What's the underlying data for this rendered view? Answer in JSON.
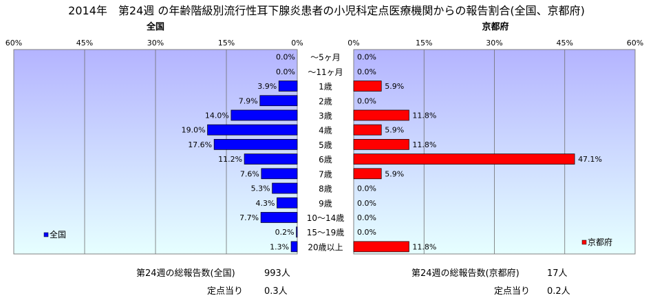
{
  "title": "2014年　第24週 の年齢階級別流行性耳下腺炎患者の小児科定点医療機関からの報告割合(全国、京都府)",
  "chart_data": {
    "type": "bar",
    "orientation": "horizontal-butterfly",
    "categories": [
      "～5ヶ月",
      "～11ヶ月",
      "1歳",
      "2歳",
      "3歳",
      "4歳",
      "5歳",
      "6歳",
      "7歳",
      "8歳",
      "9歳",
      "10～14歳",
      "15～19歳",
      "20歳以上"
    ],
    "ticks": [
      "60%",
      "45%",
      "30%",
      "15%",
      "0%"
    ],
    "ticks_right": [
      "0%",
      "15%",
      "30%",
      "45%",
      "60%"
    ],
    "xlim": [
      0,
      60
    ],
    "series": [
      {
        "name": "全国",
        "subtitle": "全国",
        "color": "#0000ff",
        "values": [
          0.0,
          0.0,
          3.9,
          7.9,
          14.0,
          19.0,
          17.6,
          11.2,
          7.6,
          5.3,
          4.3,
          7.7,
          0.2,
          1.3
        ],
        "labels": [
          "0.0%",
          "0.0%",
          "3.9%",
          "7.9%",
          "14.0%",
          "19.0%",
          "17.6%",
          "11.2%",
          "7.6%",
          "5.3%",
          "4.3%",
          "7.7%",
          "0.2%",
          "1.3%"
        ],
        "legend": "全国"
      },
      {
        "name": "京都府",
        "subtitle": "京都府",
        "color": "#ff0000",
        "values": [
          0.0,
          0.0,
          5.9,
          0.0,
          11.8,
          5.9,
          11.8,
          47.1,
          5.9,
          0.0,
          0.0,
          0.0,
          0.0,
          11.8
        ],
        "labels": [
          "0.0%",
          "0.0%",
          "5.9%",
          "0.0%",
          "11.8%",
          "5.9%",
          "11.8%",
          "47.1%",
          "5.9%",
          "0.0%",
          "0.0%",
          "0.0%",
          "0.0%",
          "11.8%"
        ],
        "legend": "京都府"
      }
    ],
    "grid": true,
    "legend_placement": "bottom-left / bottom-right"
  },
  "summary": {
    "national_total_label": "第24週の総報告数(全国)",
    "national_total_value": "993人",
    "national_per_label": "定点当り",
    "national_per_value": "0.3人",
    "kyoto_total_label": "第24週の総報告数(京都府)",
    "kyoto_total_value": "17人",
    "kyoto_per_label": "定点当り",
    "kyoto_per_value": "0.2人"
  },
  "colors": {
    "plot_top": "#b4b4ff",
    "plot_bottom": "#e6ffff",
    "national_bar": "#0000ff",
    "kyoto_bar": "#ff0000"
  }
}
